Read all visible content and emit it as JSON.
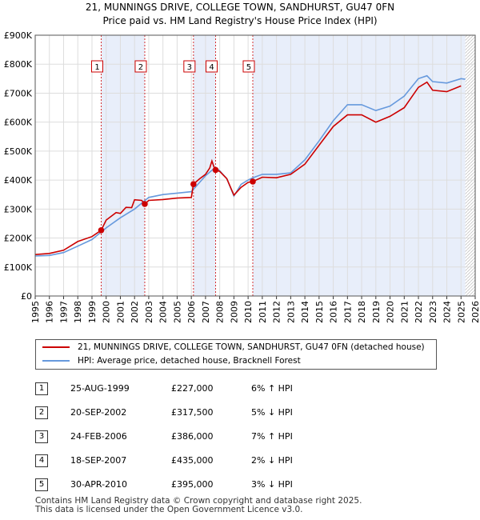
{
  "header": {
    "title_line1": "21, MUNNINGS DRIVE, COLLEGE TOWN, SANDHURST, GU47 0FN",
    "title_line2": "Price paid vs. HM Land Registry's House Price Index (HPI)"
  },
  "chart_data": {
    "type": "line",
    "xlim": [
      1995,
      2026
    ],
    "ylim": [
      0,
      900000
    ],
    "y_ticks": [
      {
        "value": 0,
        "label": "£0"
      },
      {
        "value": 100000,
        "label": "£100K"
      },
      {
        "value": 200000,
        "label": "£200K"
      },
      {
        "value": 300000,
        "label": "£300K"
      },
      {
        "value": 400000,
        "label": "£400K"
      },
      {
        "value": 500000,
        "label": "£500K"
      },
      {
        "value": 600000,
        "label": "£600K"
      },
      {
        "value": 700000,
        "label": "£700K"
      },
      {
        "value": 800000,
        "label": "£800K"
      },
      {
        "value": 900000,
        "label": "£900K"
      }
    ],
    "x_ticks": [
      "1995",
      "1996",
      "1997",
      "1998",
      "1999",
      "2000",
      "2001",
      "2002",
      "2003",
      "2004",
      "2005",
      "2006",
      "2007",
      "2008",
      "2009",
      "2010",
      "2011",
      "2012",
      "2013",
      "2014",
      "2015",
      "2016",
      "2017",
      "2018",
      "2019",
      "2020",
      "2021",
      "2022",
      "2023",
      "2024",
      "2025",
      "2026"
    ],
    "shaded_ranges": [
      [
        1999.65,
        2002.72
      ],
      [
        2006.15,
        2007.71
      ],
      [
        2010.33,
        2025.3
      ]
    ],
    "forecast_start": 2025.3,
    "series": [
      {
        "name": "21, MUNNINGS DRIVE, COLLEGE TOWN, SANDHURST, GU47 0FN (detached house)",
        "color": "#cc0000",
        "points": [
          [
            1995,
            143000
          ],
          [
            1996,
            147000
          ],
          [
            1997,
            158000
          ],
          [
            1998,
            188000
          ],
          [
            1999.0,
            205000
          ],
          [
            1999.65,
            227000
          ],
          [
            2000,
            262000
          ],
          [
            2000.7,
            288000
          ],
          [
            2001,
            285000
          ],
          [
            2001.4,
            306000
          ],
          [
            2001.8,
            305000
          ],
          [
            2002.0,
            332000
          ],
          [
            2002.5,
            330000
          ],
          [
            2002.72,
            317500
          ],
          [
            2003,
            330000
          ],
          [
            2004,
            333000
          ],
          [
            2005,
            338000
          ],
          [
            2006.0,
            340000
          ],
          [
            2006.15,
            386000
          ],
          [
            2006.6,
            405000
          ],
          [
            2007.0,
            420000
          ],
          [
            2007.3,
            442000
          ],
          [
            2007.45,
            466000
          ],
          [
            2007.6,
            445000
          ],
          [
            2007.71,
            435000
          ],
          [
            2008.0,
            430000
          ],
          [
            2008.5,
            405000
          ],
          [
            2009.0,
            348000
          ],
          [
            2009.5,
            375000
          ],
          [
            2010.0,
            392000
          ],
          [
            2010.33,
            395000
          ],
          [
            2011,
            410000
          ],
          [
            2012,
            408000
          ],
          [
            2013,
            420000
          ],
          [
            2014,
            455000
          ],
          [
            2015,
            520000
          ],
          [
            2016,
            585000
          ],
          [
            2017,
            625000
          ],
          [
            2018,
            625000
          ],
          [
            2019,
            600000
          ],
          [
            2020,
            620000
          ],
          [
            2021,
            650000
          ],
          [
            2022,
            720000
          ],
          [
            2022.6,
            738000
          ],
          [
            2023,
            710000
          ],
          [
            2024,
            705000
          ],
          [
            2025,
            725000
          ]
        ]
      },
      {
        "name": "HPI: Average price, detached house, Bracknell Forest",
        "color": "#6699dd",
        "points": [
          [
            1995,
            138000
          ],
          [
            1996,
            140000
          ],
          [
            1997,
            150000
          ],
          [
            1998,
            172000
          ],
          [
            1999,
            195000
          ],
          [
            2000,
            235000
          ],
          [
            2001,
            270000
          ],
          [
            2002,
            300000
          ],
          [
            2003,
            340000
          ],
          [
            2004,
            350000
          ],
          [
            2005,
            355000
          ],
          [
            2006,
            360000
          ],
          [
            2007,
            415000
          ],
          [
            2007.7,
            444000
          ],
          [
            2008,
            432000
          ],
          [
            2008.5,
            405000
          ],
          [
            2009,
            345000
          ],
          [
            2009.5,
            385000
          ],
          [
            2010,
            400000
          ],
          [
            2010.33,
            408000
          ],
          [
            2011,
            420000
          ],
          [
            2012,
            420000
          ],
          [
            2013,
            425000
          ],
          [
            2014,
            470000
          ],
          [
            2015,
            535000
          ],
          [
            2016,
            605000
          ],
          [
            2017,
            660000
          ],
          [
            2018,
            660000
          ],
          [
            2019,
            640000
          ],
          [
            2020,
            655000
          ],
          [
            2021,
            690000
          ],
          [
            2022,
            750000
          ],
          [
            2022.6,
            760000
          ],
          [
            2023,
            740000
          ],
          [
            2024,
            735000
          ],
          [
            2025,
            750000
          ],
          [
            2025.3,
            748000
          ]
        ]
      }
    ],
    "sales": [
      {
        "num": "1",
        "x": 1999.65,
        "price": 227000
      },
      {
        "num": "2",
        "x": 2002.72,
        "price": 317500
      },
      {
        "num": "3",
        "x": 2006.15,
        "price": 386000
      },
      {
        "num": "4",
        "x": 2007.71,
        "price": 435000
      },
      {
        "num": "5",
        "x": 2010.33,
        "price": 395000
      }
    ]
  },
  "legend": {
    "property_label": "21, MUNNINGS DRIVE, COLLEGE TOWN, SANDHURST, GU47 0FN (detached house)",
    "hpi_label": "HPI: Average price, detached house, Bracknell Forest",
    "property_color": "#cc0000",
    "hpi_color": "#6699dd"
  },
  "sales_table": [
    {
      "num": "1",
      "date": "25-AUG-1999",
      "price": "£227,000",
      "hpi": "6% ↑ HPI"
    },
    {
      "num": "2",
      "date": "20-SEP-2002",
      "price": "£317,500",
      "hpi": "5% ↓ HPI"
    },
    {
      "num": "3",
      "date": "24-FEB-2006",
      "price": "£386,000",
      "hpi": "7% ↑ HPI"
    },
    {
      "num": "4",
      "date": "18-SEP-2007",
      "price": "£435,000",
      "hpi": "2% ↓ HPI"
    },
    {
      "num": "5",
      "date": "30-APR-2010",
      "price": "£395,000",
      "hpi": "3% ↓ HPI"
    }
  ],
  "footer": {
    "line1": "Contains HM Land Registry data © Crown copyright and database right 2025.",
    "line2": "This data is licensed under the Open Government Licence v3.0."
  }
}
